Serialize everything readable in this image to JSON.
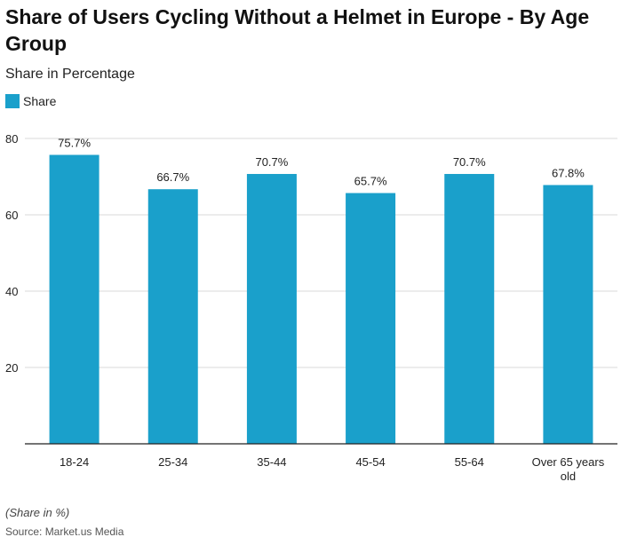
{
  "title": "Share of Users Cycling Without a Helmet in Europe - By Age Group",
  "subtitle": "Share in Percentage",
  "footnote": "(Share in %)",
  "source": "Source: Market.us Media",
  "colors": {
    "bar": "#1aa0cb",
    "grid": "#d9d9d9",
    "axis": "#222222",
    "text": "#222222"
  },
  "chart_data": {
    "type": "bar",
    "categories": [
      "18-24",
      "25-34",
      "35-44",
      "45-54",
      "55-64",
      "Over 65 years old"
    ],
    "category_lines": [
      [
        "18-24"
      ],
      [
        "25-34"
      ],
      [
        "35-44"
      ],
      [
        "45-54"
      ],
      [
        "55-64"
      ],
      [
        "Over 65 years",
        "old"
      ]
    ],
    "series": [
      {
        "name": "Share",
        "values": [
          75.7,
          66.7,
          70.7,
          65.7,
          70.7,
          67.8
        ],
        "labels": [
          "75.7%",
          "66.7%",
          "70.7%",
          "65.7%",
          "70.7%",
          "67.8%"
        ]
      }
    ],
    "ylim": [
      0,
      80
    ],
    "yticks": [
      20,
      40,
      60,
      80
    ],
    "ytick_labels": [
      "20",
      "40",
      "60",
      "80"
    ],
    "grid": true,
    "legend": "top-left"
  }
}
